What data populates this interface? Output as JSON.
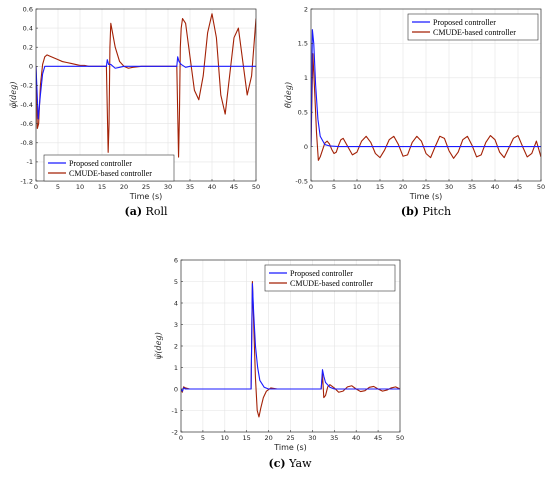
{
  "colors": {
    "proposed": "#1a1aff",
    "cmude": "#a32106",
    "grid": "#e4e4e4",
    "axis": "#333333"
  },
  "legend": [
    "Proposed controller",
    "CMUDE-based controller"
  ],
  "chart_data": [
    {
      "type": "line",
      "caption_tag": "(a)",
      "caption_text": "Roll",
      "xlabel": "Time (s)",
      "ylabel": "φ̃(deg)",
      "xlim": [
        0,
        50
      ],
      "ylim": [
        -1.2,
        0.6
      ],
      "xticks": [
        0,
        5,
        10,
        15,
        20,
        25,
        30,
        35,
        40,
        45,
        50
      ],
      "yticks": [
        -1.2,
        -1,
        -0.8,
        -0.6,
        -0.4,
        -0.2,
        0,
        0.2,
        0.4,
        0.6
      ],
      "ytick_labels": [
        "-1.2",
        "-1",
        "-0.8",
        "-0.6",
        "-0.4",
        "-0.2",
        "0",
        "0.2",
        "0.4",
        "0.6"
      ],
      "grid": true,
      "legend_position": "bottom-left",
      "series": [
        {
          "name": "Proposed controller",
          "x": [
            0,
            0.5,
            1,
            1.5,
            2,
            3,
            16,
            16.2,
            16.5,
            17,
            18,
            19,
            20,
            32,
            32.2,
            32.5,
            33,
            34,
            35,
            50
          ],
          "y": [
            0,
            -0.55,
            -0.3,
            -0.08,
            0,
            0,
            0,
            0.07,
            0.02,
            0.02,
            -0.02,
            -0.01,
            0,
            0,
            0.1,
            0.05,
            0.02,
            -0.01,
            0,
            0
          ]
        },
        {
          "name": "CMUDE-based controller",
          "x": [
            0,
            0.3,
            0.6,
            1,
            1.5,
            2,
            2.5,
            3,
            4,
            5,
            6,
            7,
            8,
            9,
            10,
            11,
            12,
            13,
            14,
            15,
            16,
            16.4,
            16.6,
            16.8,
            17,
            17.4,
            18,
            19,
            20,
            21,
            22,
            24,
            26,
            28,
            30,
            31,
            32,
            32.4,
            32.6,
            32.8,
            33,
            33.3,
            34,
            35,
            36,
            37,
            38,
            39,
            40,
            41,
            42,
            43,
            44,
            45,
            46,
            47,
            48,
            49,
            50
          ],
          "y": [
            0,
            -0.65,
            -0.6,
            -0.2,
            0.02,
            0.1,
            0.12,
            0.11,
            0.09,
            0.07,
            0.05,
            0.04,
            0.03,
            0.02,
            0.01,
            0.01,
            0,
            0,
            0,
            0,
            0,
            -0.9,
            -0.6,
            0.2,
            0.45,
            0.35,
            0.2,
            0.05,
            0,
            -0.02,
            -0.01,
            0,
            0,
            0,
            0,
            0,
            0,
            -0.95,
            -0.5,
            0.2,
            0.4,
            0.5,
            0.45,
            0.1,
            -0.25,
            -0.35,
            -0.1,
            0.35,
            0.55,
            0.3,
            -0.3,
            -0.5,
            -0.1,
            0.3,
            0.4,
            0.05,
            -0.3,
            -0.1,
            0.5
          ]
        }
      ]
    },
    {
      "type": "line",
      "caption_tag": "(b)",
      "caption_text": "Pitch",
      "xlabel": "Time (s)",
      "ylabel": "θ̃(deg)",
      "xlim": [
        0,
        50
      ],
      "ylim": [
        -0.5,
        2
      ],
      "xticks": [
        0,
        5,
        10,
        15,
        20,
        25,
        30,
        35,
        40,
        45,
        50
      ],
      "yticks": [
        -0.5,
        0,
        0.5,
        1,
        1.5,
        2
      ],
      "ytick_labels": [
        "-0.5",
        "0",
        "0.5",
        "1",
        "1.5",
        "2"
      ],
      "grid": true,
      "legend_position": "top-right",
      "series": [
        {
          "name": "Proposed controller",
          "x": [
            0,
            0.3,
            0.6,
            1,
            1.5,
            2,
            3,
            4,
            6,
            50
          ],
          "y": [
            0,
            1.7,
            1.5,
            0.9,
            0.4,
            0.15,
            0.03,
            0.01,
            0,
            0
          ]
        },
        {
          "name": "CMUDE-based controller",
          "x": [
            0,
            0.4,
            0.8,
            1.2,
            1.6,
            2,
            2.5,
            3,
            3.5,
            4,
            4.5,
            5,
            5.5,
            6,
            6.5,
            7,
            8,
            9,
            10,
            11,
            12,
            13,
            14,
            15,
            16,
            17,
            18,
            19,
            20,
            21,
            22,
            23,
            24,
            25,
            26,
            27,
            28,
            29,
            30,
            31,
            32,
            33,
            34,
            35,
            36,
            37,
            38,
            39,
            40,
            41,
            42,
            43,
            44,
            45,
            46,
            47,
            48,
            49,
            50
          ],
          "y": [
            0,
            1.35,
            0.8,
            0.2,
            -0.2,
            -0.15,
            -0.05,
            0.05,
            0.08,
            0.04,
            -0.04,
            -0.1,
            -0.08,
            0.02,
            0.1,
            0.12,
            0.0,
            -0.12,
            -0.08,
            0.08,
            0.15,
            0.06,
            -0.1,
            -0.16,
            -0.05,
            0.1,
            0.15,
            0.03,
            -0.14,
            -0.12,
            0.06,
            0.15,
            0.08,
            -0.1,
            -0.16,
            0.0,
            0.15,
            0.12,
            -0.06,
            -0.17,
            -0.08,
            0.1,
            0.15,
            0.02,
            -0.15,
            -0.12,
            0.06,
            0.16,
            0.1,
            -0.08,
            -0.16,
            -0.02,
            0.12,
            0.16,
            0.0,
            -0.15,
            -0.1,
            0.08,
            -0.15
          ]
        }
      ]
    },
    {
      "type": "line",
      "caption_tag": "(c)",
      "caption_text": "Yaw",
      "xlabel": "Time (s)",
      "ylabel": "ψ̃(deg)",
      "xlim": [
        0,
        50
      ],
      "ylim": [
        -2,
        6
      ],
      "xticks": [
        0,
        5,
        10,
        15,
        20,
        25,
        30,
        35,
        40,
        45,
        50
      ],
      "yticks": [
        -2,
        -1,
        0,
        1,
        2,
        3,
        4,
        5,
        6
      ],
      "ytick_labels": [
        "-2",
        "-1",
        "0",
        "1",
        "2",
        "3",
        "4",
        "5",
        "6"
      ],
      "grid": true,
      "legend_position": "top-right",
      "series": [
        {
          "name": "Proposed controller",
          "x": [
            0,
            0.3,
            0.6,
            1,
            2,
            16,
            16.3,
            16.6,
            17,
            17.5,
            18,
            19,
            20,
            32,
            32.3,
            32.6,
            33,
            34,
            35,
            50
          ],
          "y": [
            0,
            -0.1,
            0.05,
            0,
            0,
            0,
            4.9,
            3.5,
            2.0,
            1.0,
            0.4,
            0.08,
            0,
            0,
            0.9,
            0.6,
            0.3,
            0.08,
            0,
            0
          ]
        },
        {
          "name": "CMUDE-based controller",
          "x": [
            0,
            0.3,
            0.6,
            1,
            2,
            16,
            16.3,
            16.6,
            17,
            17.4,
            17.8,
            18.2,
            18.8,
            19.5,
            20.5,
            22,
            32,
            32.3,
            32.6,
            33,
            33.5,
            34,
            35,
            36,
            37,
            38,
            39,
            40,
            41,
            42,
            43,
            44,
            45,
            46,
            47,
            48,
            49,
            50
          ],
          "y": [
            0,
            -0.15,
            0.1,
            0.05,
            0,
            0,
            5.0,
            3.0,
            0.5,
            -1.0,
            -1.3,
            -0.9,
            -0.4,
            -0.1,
            0.05,
            0,
            0,
            0.7,
            -0.4,
            -0.3,
            0.1,
            0.2,
            0.05,
            -0.15,
            -0.1,
            0.1,
            0.15,
            0,
            -0.12,
            -0.08,
            0.08,
            0.12,
            0,
            -0.1,
            -0.05,
            0.05,
            0.1,
            0
          ]
        }
      ]
    }
  ]
}
